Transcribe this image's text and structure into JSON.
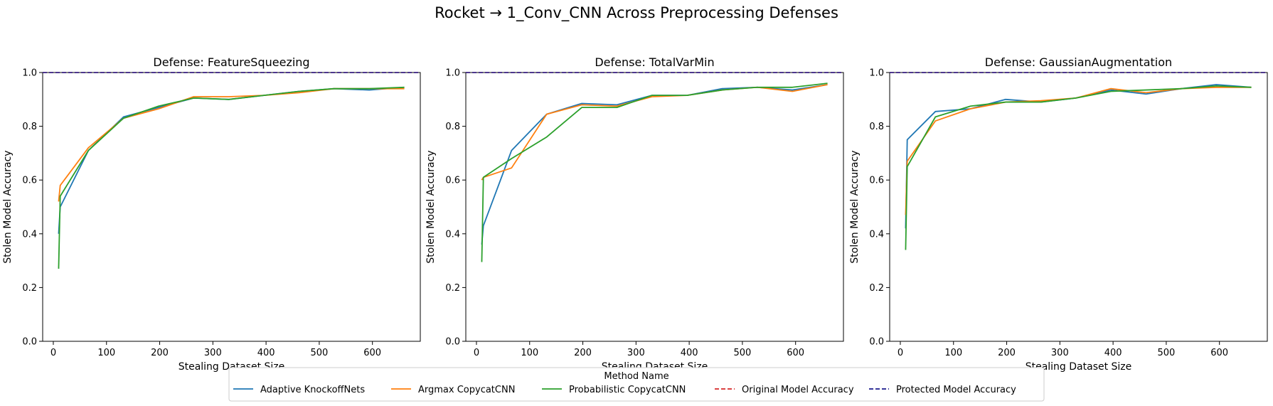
{
  "figure": {
    "suptitle": "Rocket → 1_Conv_CNN Across Preprocessing Defenses",
    "legend_title": "Method Name",
    "legend_placement": "bottom-center"
  },
  "chart_data": [
    {
      "type": "line",
      "title": "Defense: FeatureSqueezing",
      "xlabel": "Stealing Dataset Size",
      "ylabel": "Stolen Model Accuracy",
      "xlim": [
        -20,
        690
      ],
      "ylim": [
        0.0,
        1.0
      ],
      "xticks": [
        0,
        100,
        200,
        300,
        400,
        500,
        600
      ],
      "yticks": [
        0.0,
        0.2,
        0.4,
        0.6,
        0.8,
        1.0
      ],
      "grid": false,
      "series": [
        {
          "name": "Adaptive KnockoffNets",
          "color": "#1f77b4",
          "style": "solid",
          "x": [
            10,
            13,
            66,
            132,
            198,
            264,
            330,
            396,
            462,
            528,
            594,
            660
          ],
          "y": [
            0.4,
            0.5,
            0.71,
            0.835,
            0.87,
            0.905,
            0.9,
            0.915,
            0.93,
            0.94,
            0.935,
            0.945
          ]
        },
        {
          "name": "Argmax CopycatCNN",
          "color": "#ff7f0e",
          "style": "solid",
          "x": [
            10,
            13,
            66,
            132,
            198,
            264,
            330,
            396,
            462,
            528,
            594,
            660
          ],
          "y": [
            0.52,
            0.58,
            0.72,
            0.83,
            0.865,
            0.91,
            0.91,
            0.915,
            0.925,
            0.94,
            0.94,
            0.94
          ]
        },
        {
          "name": "Probabilistic CopycatCNN",
          "color": "#2ca02c",
          "style": "solid",
          "x": [
            10,
            13,
            66,
            132,
            198,
            264,
            330,
            396,
            462,
            528,
            594,
            660
          ],
          "y": [
            0.27,
            0.54,
            0.71,
            0.83,
            0.875,
            0.905,
            0.9,
            0.915,
            0.93,
            0.94,
            0.94,
            0.945
          ]
        },
        {
          "name": "Original Model Accuracy",
          "color": "#d62728",
          "style": "dashed",
          "hline": 1.0
        },
        {
          "name": "Protected Model Accuracy",
          "color": "#1a1a8c",
          "style": "dashed",
          "hline": 1.0
        }
      ]
    },
    {
      "type": "line",
      "title": "Defense: TotalVarMin",
      "xlabel": "Stealing Dataset Size",
      "ylabel": "Stolen Model Accuracy",
      "xlim": [
        -20,
        690
      ],
      "ylim": [
        0.0,
        1.0
      ],
      "xticks": [
        0,
        100,
        200,
        300,
        400,
        500,
        600
      ],
      "yticks": [
        0.0,
        0.2,
        0.4,
        0.6,
        0.8,
        1.0
      ],
      "grid": false,
      "series": [
        {
          "name": "Adaptive KnockoffNets",
          "color": "#1f77b4",
          "style": "solid",
          "x": [
            10,
            13,
            66,
            132,
            198,
            264,
            330,
            396,
            462,
            528,
            594,
            660
          ],
          "y": [
            0.36,
            0.43,
            0.71,
            0.845,
            0.885,
            0.88,
            0.915,
            0.915,
            0.94,
            0.945,
            0.935,
            0.955
          ]
        },
        {
          "name": "Argmax CopycatCNN",
          "color": "#ff7f0e",
          "style": "solid",
          "x": [
            10,
            13,
            66,
            132,
            198,
            264,
            330,
            396,
            462,
            528,
            594,
            660
          ],
          "y": [
            0.6,
            0.61,
            0.645,
            0.845,
            0.88,
            0.875,
            0.91,
            0.915,
            0.935,
            0.945,
            0.93,
            0.955
          ]
        },
        {
          "name": "Probabilistic CopycatCNN",
          "color": "#2ca02c",
          "style": "solid",
          "x": [
            10,
            13,
            66,
            132,
            198,
            264,
            330,
            396,
            462,
            528,
            594,
            660
          ],
          "y": [
            0.295,
            0.61,
            0.68,
            0.76,
            0.87,
            0.87,
            0.915,
            0.915,
            0.935,
            0.945,
            0.945,
            0.96
          ]
        },
        {
          "name": "Original Model Accuracy",
          "color": "#d62728",
          "style": "dashed",
          "hline": 1.0
        },
        {
          "name": "Protected Model Accuracy",
          "color": "#1a1a8c",
          "style": "dashed",
          "hline": 1.0
        }
      ]
    },
    {
      "type": "line",
      "title": "Defense: GaussianAugmentation",
      "xlabel": "Stealing Dataset Size",
      "ylabel": "Stolen Model Accuracy",
      "xlim": [
        -20,
        690
      ],
      "ylim": [
        0.0,
        1.0
      ],
      "xticks": [
        0,
        100,
        200,
        300,
        400,
        500,
        600
      ],
      "yticks": [
        0.0,
        0.2,
        0.4,
        0.6,
        0.8,
        1.0
      ],
      "grid": false,
      "series": [
        {
          "name": "Adaptive KnockoffNets",
          "color": "#1f77b4",
          "style": "solid",
          "x": [
            10,
            13,
            66,
            132,
            198,
            264,
            330,
            396,
            462,
            528,
            594,
            660
          ],
          "y": [
            0.42,
            0.75,
            0.855,
            0.865,
            0.9,
            0.89,
            0.905,
            0.935,
            0.92,
            0.94,
            0.955,
            0.945
          ]
        },
        {
          "name": "Argmax CopycatCNN",
          "color": "#ff7f0e",
          "style": "solid",
          "x": [
            10,
            13,
            66,
            132,
            198,
            264,
            330,
            396,
            462,
            528,
            594,
            660
          ],
          "y": [
            0.47,
            0.67,
            0.82,
            0.865,
            0.89,
            0.895,
            0.905,
            0.94,
            0.925,
            0.94,
            0.945,
            0.945
          ]
        },
        {
          "name": "Probabilistic CopycatCNN",
          "color": "#2ca02c",
          "style": "solid",
          "x": [
            10,
            13,
            66,
            132,
            198,
            264,
            330,
            396,
            462,
            528,
            594,
            660
          ],
          "y": [
            0.34,
            0.65,
            0.835,
            0.875,
            0.89,
            0.89,
            0.905,
            0.93,
            0.935,
            0.94,
            0.95,
            0.945
          ]
        },
        {
          "name": "Original Model Accuracy",
          "color": "#d62728",
          "style": "dashed",
          "hline": 1.0
        },
        {
          "name": "Protected Model Accuracy",
          "color": "#1a1a8c",
          "style": "dashed",
          "hline": 1.0
        }
      ]
    }
  ],
  "legend": [
    {
      "label": "Adaptive KnockoffNets",
      "color": "#1f77b4",
      "style": "solid"
    },
    {
      "label": "Argmax CopycatCNN",
      "color": "#ff7f0e",
      "style": "solid"
    },
    {
      "label": "Probabilistic CopycatCNN",
      "color": "#2ca02c",
      "style": "solid"
    },
    {
      "label": "Original Model Accuracy",
      "color": "#d62728",
      "style": "dashed"
    },
    {
      "label": "Protected Model Accuracy",
      "color": "#1a1a8c",
      "style": "dashed"
    }
  ]
}
